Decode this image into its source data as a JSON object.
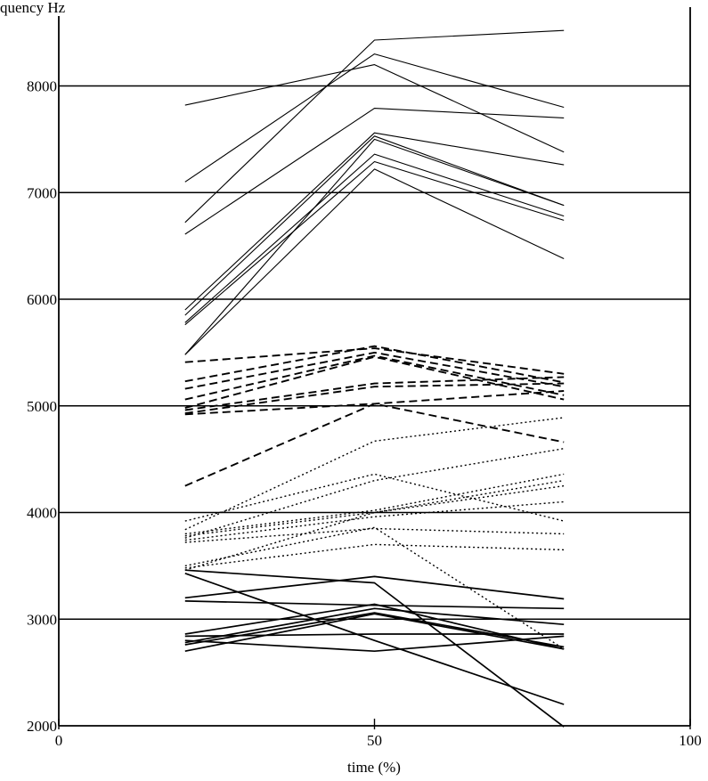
{
  "chart_data": {
    "type": "line",
    "title": "",
    "ylabel_fragment": "quency Hz",
    "xlabel": "time (%)",
    "xlim": [
      0,
      100
    ],
    "ylim": [
      2000,
      8800
    ],
    "x_ticks": [
      "0",
      "50",
      "100"
    ],
    "y_ticks": [
      "2000",
      "3000",
      "4000",
      "5000",
      "6000",
      "7000",
      "8000"
    ],
    "grid": "horizontal",
    "x": [
      20,
      50,
      80
    ],
    "series": [
      {
        "style": "solid-thin",
        "values": [
          7820,
          8200,
          7380
        ]
      },
      {
        "style": "solid-thin",
        "values": [
          7100,
          8300,
          7800
        ]
      },
      {
        "style": "solid-thin",
        "values": [
          6720,
          8430,
          8520
        ]
      },
      {
        "style": "solid-thin",
        "values": [
          6610,
          7790,
          7700
        ]
      },
      {
        "style": "solid-thin",
        "values": [
          5900,
          7560,
          7260
        ]
      },
      {
        "style": "solid-thin",
        "values": [
          5850,
          7530,
          6880
        ]
      },
      {
        "style": "solid-thin",
        "values": [
          5780,
          7360,
          6780
        ]
      },
      {
        "style": "solid-thin",
        "values": [
          5760,
          7290,
          6740
        ]
      },
      {
        "style": "solid-thin",
        "values": [
          5480,
          7220,
          6380
        ]
      },
      {
        "style": "solid-thin",
        "values": [
          5480,
          7500,
          6880
        ]
      },
      {
        "style": "dashed",
        "values": [
          5410,
          5540,
          5300
        ]
      },
      {
        "style": "dashed",
        "values": [
          5230,
          5560,
          5220
        ]
      },
      {
        "style": "dashed",
        "values": [
          5160,
          5500,
          5180
        ]
      },
      {
        "style": "dashed",
        "values": [
          5060,
          5470,
          5100
        ]
      },
      {
        "style": "dashed",
        "values": [
          4980,
          5460,
          5060
        ]
      },
      {
        "style": "dashed",
        "values": [
          4960,
          5210,
          5270
        ]
      },
      {
        "style": "dashed",
        "values": [
          4930,
          5180,
          5210
        ]
      },
      {
        "style": "dashed",
        "values": [
          4920,
          5020,
          5140
        ]
      },
      {
        "style": "dashed",
        "values": [
          4250,
          5020,
          4660
        ]
      },
      {
        "style": "dotted",
        "values": [
          3920,
          4360,
          3920
        ]
      },
      {
        "style": "dotted",
        "values": [
          3840,
          4670,
          4890
        ]
      },
      {
        "style": "dotted",
        "values": [
          3800,
          4020,
          4360
        ]
      },
      {
        "style": "dotted",
        "values": [
          3780,
          4000,
          4300
        ]
      },
      {
        "style": "dotted",
        "values": [
          3760,
          4300,
          4600
        ]
      },
      {
        "style": "dotted",
        "values": [
          3740,
          3960,
          4100
        ]
      },
      {
        "style": "dotted",
        "values": [
          3720,
          3850,
          3800
        ]
      },
      {
        "style": "dotted",
        "values": [
          3500,
          3860,
          2720
        ]
      },
      {
        "style": "dotted",
        "values": [
          3480,
          3700,
          3650
        ]
      },
      {
        "style": "dotted",
        "values": [
          3460,
          4000,
          4250
        ]
      },
      {
        "style": "solid-bold",
        "values": [
          3460,
          3340,
          1990
        ]
      },
      {
        "style": "solid-bold",
        "values": [
          3430,
          2800,
          2200
        ]
      },
      {
        "style": "solid-bold",
        "values": [
          3200,
          3400,
          3190
        ]
      },
      {
        "style": "solid-bold",
        "values": [
          3170,
          3130,
          3100
        ]
      },
      {
        "style": "solid-bold",
        "values": [
          2860,
          3140,
          2720
        ]
      },
      {
        "style": "solid-bold",
        "values": [
          2840,
          2860,
          2860
        ]
      },
      {
        "style": "solid-bold",
        "values": [
          2800,
          2700,
          2840
        ]
      },
      {
        "style": "solid-bold",
        "values": [
          2780,
          3100,
          2950
        ]
      },
      {
        "style": "solid-bold",
        "values": [
          2760,
          3060,
          2740
        ]
      },
      {
        "style": "solid-bold",
        "values": [
          2700,
          3050,
          2720
        ]
      }
    ]
  }
}
